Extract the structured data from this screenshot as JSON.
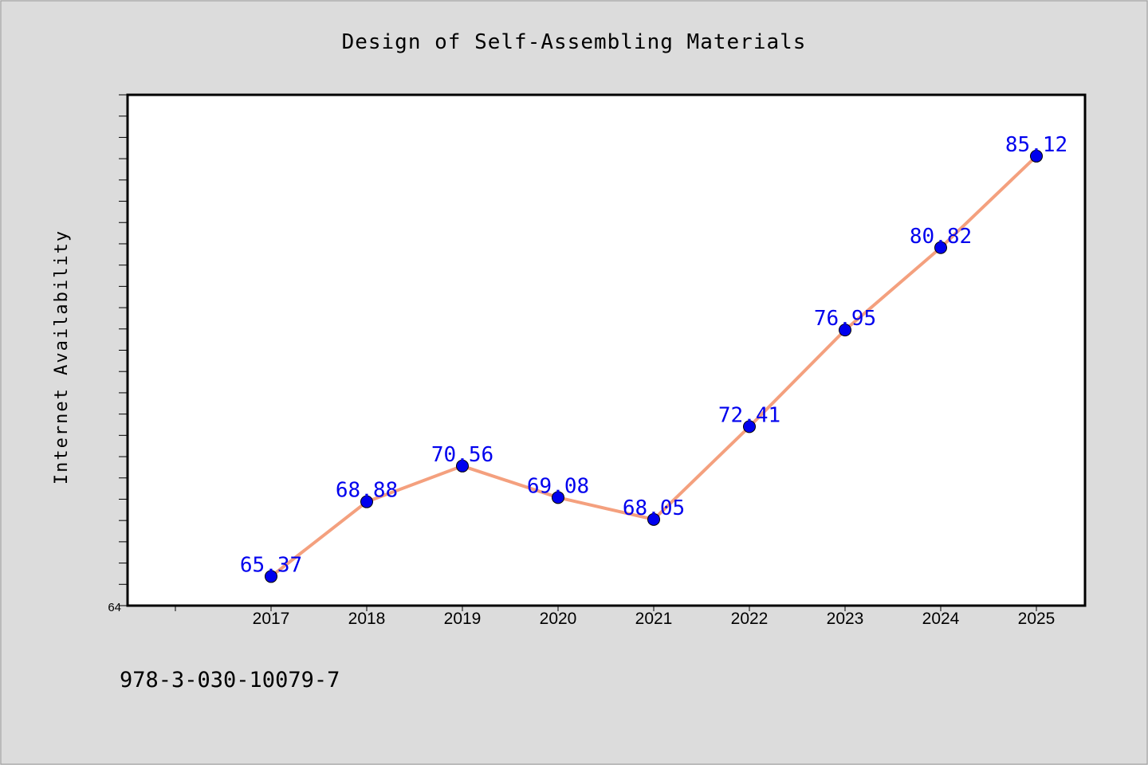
{
  "chart_data": {
    "type": "line",
    "title": "Design of Self-Assembling Materials",
    "xlabel": "",
    "ylabel": "Internet Availability",
    "categories": [
      "2017",
      "2018",
      "2019",
      "2020",
      "2021",
      "2022",
      "2023",
      "2024",
      "2025"
    ],
    "series": [
      {
        "values": [
          65.37,
          68.88,
          70.56,
          69.08,
          68.05,
          72.41,
          76.95,
          80.82,
          85.12
        ],
        "data_labels": [
          "65.37",
          "68.88",
          "70.56",
          "69.08",
          "68.05",
          "72.41",
          "76.95",
          "80.82",
          "85.12"
        ],
        "line_color": "#f4a07e",
        "marker_color": "#0000ee",
        "label_color": "#0000ee"
      }
    ],
    "ylim": [
      64,
      88
    ],
    "y_tick_labels": [
      "64"
    ],
    "grid": false,
    "legend": "none"
  },
  "footer": {
    "isbn": "978-3-030-10079-7"
  },
  "colors": {
    "background": "#dcdcdc",
    "plot_background": "#ffffff",
    "axis": "#000000"
  }
}
